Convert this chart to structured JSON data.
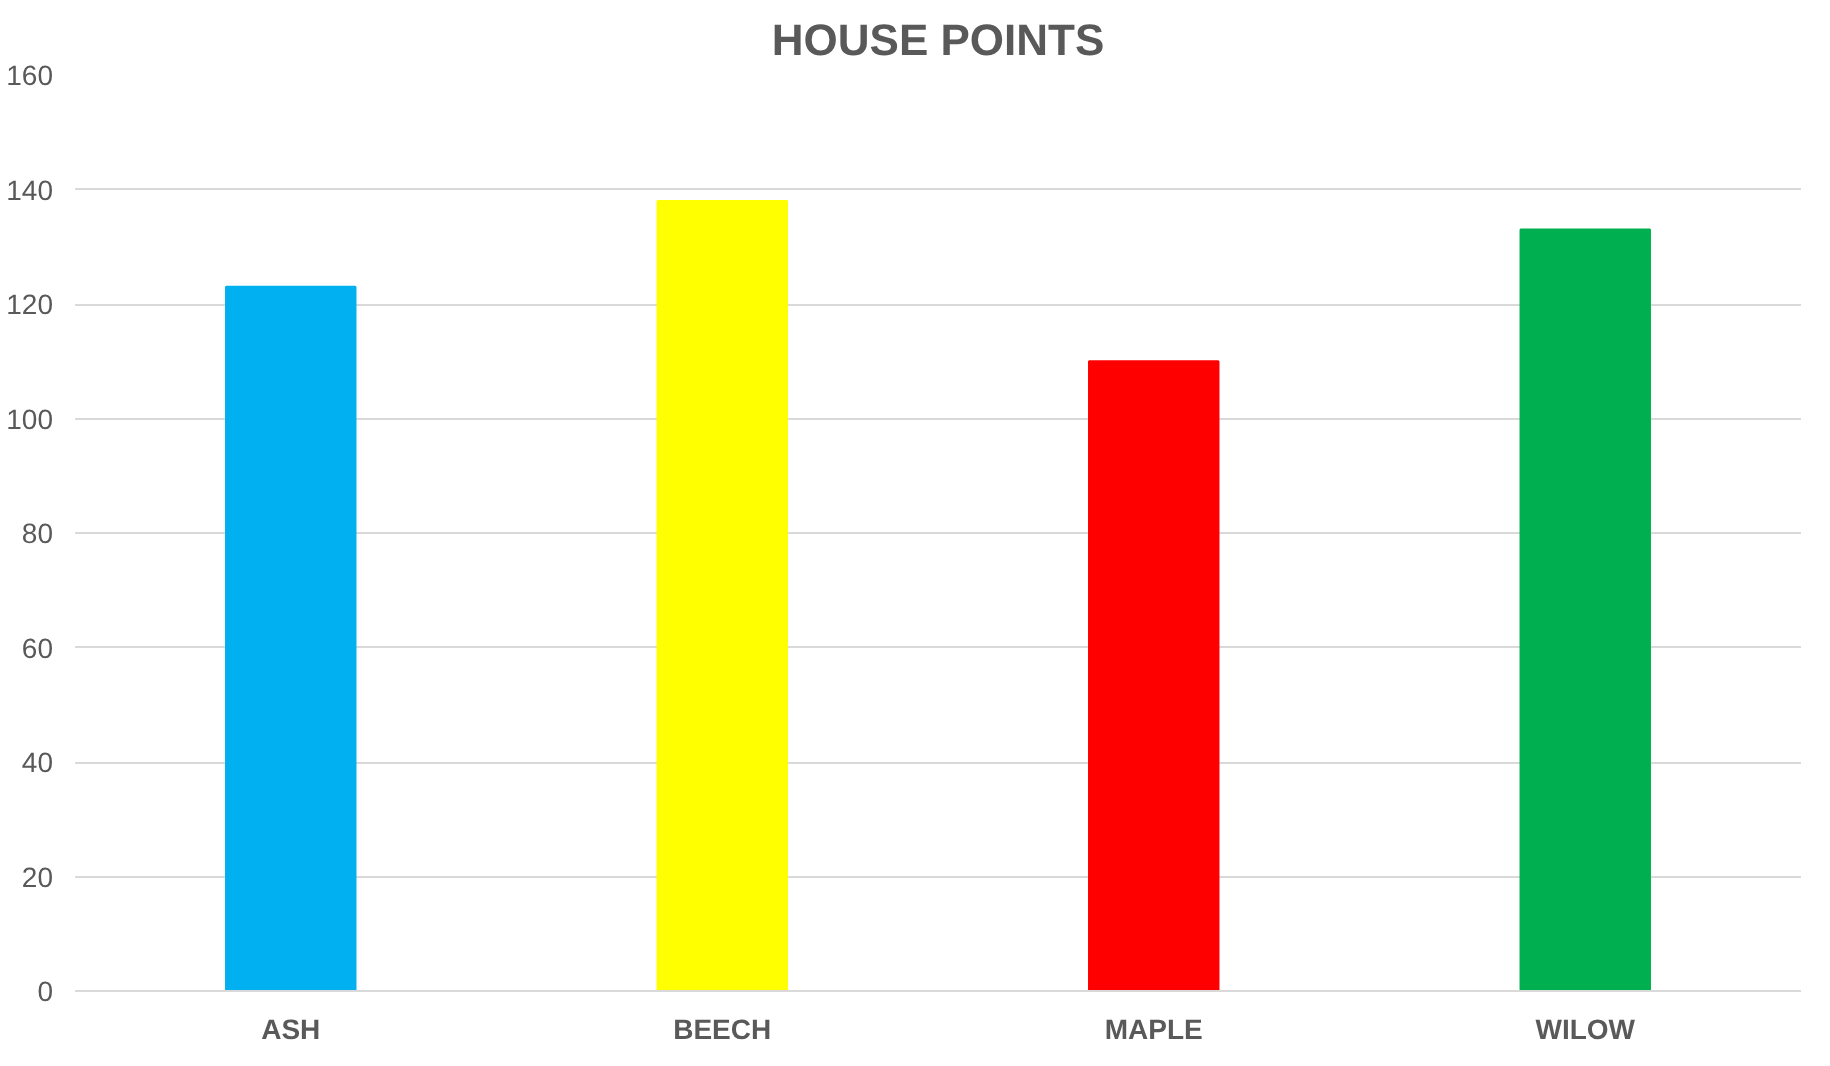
{
  "chart_data": {
    "type": "bar",
    "title": "HOUSE POINTS",
    "categories": [
      "ASH",
      "BEECH",
      "MAPLE",
      "WILOW"
    ],
    "values": [
      123,
      138,
      110,
      133
    ],
    "colors": [
      "#00b0f0",
      "#ffff00",
      "#ff0000",
      "#00b050"
    ],
    "ylim": [
      0,
      160
    ],
    "yticks": [
      0,
      20,
      40,
      60,
      80,
      100,
      120,
      140,
      160
    ],
    "grid": "y"
  }
}
